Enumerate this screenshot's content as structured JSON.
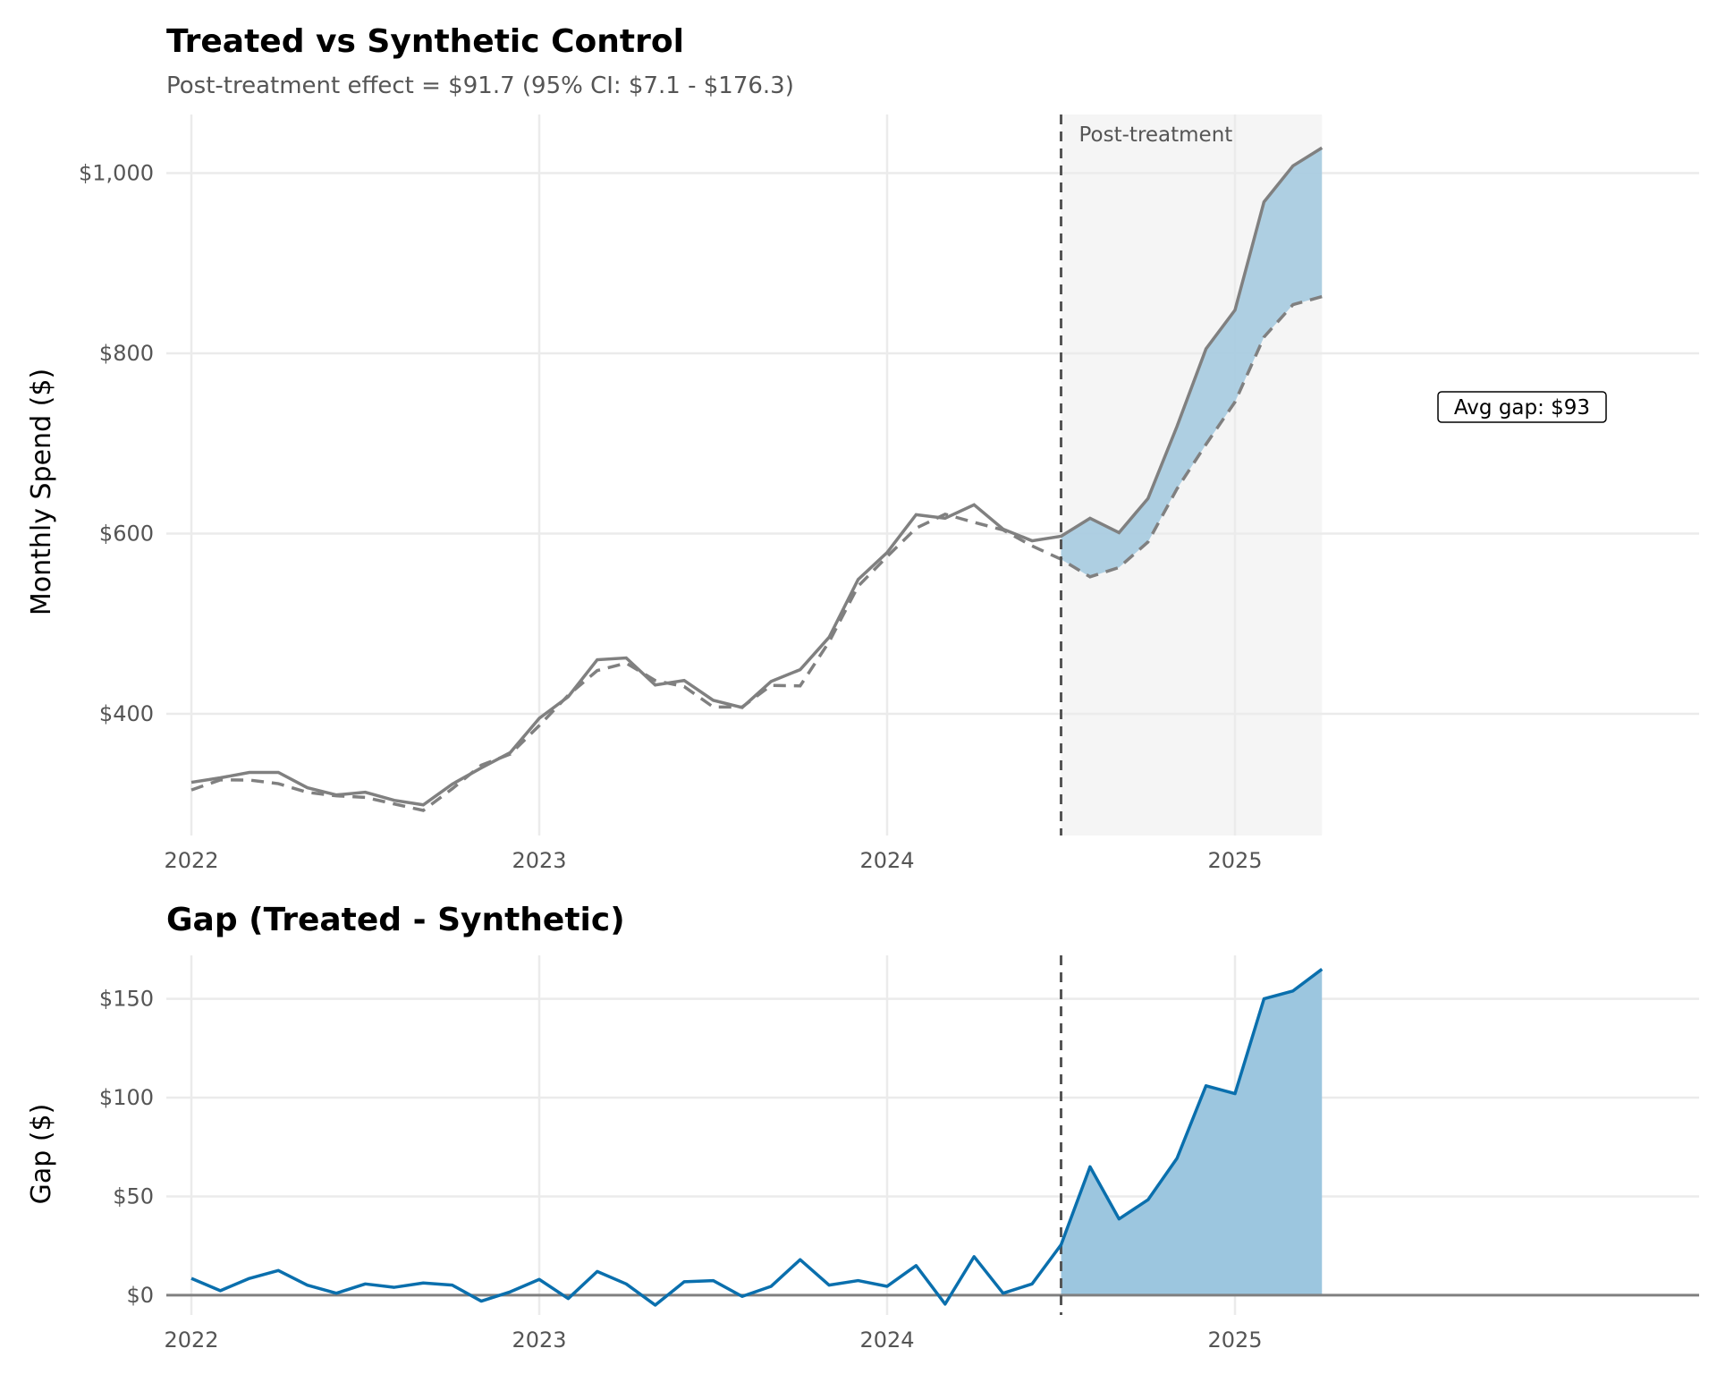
{
  "chart_data": [
    {
      "type": "line",
      "title": "Treated vs Synthetic Control",
      "subtitle": "Post-treatment effect = $91.7 (95% CI: $7.1 - $176.3)",
      "xlabel": "",
      "ylabel": "Monthly Spend ($)",
      "x_start": "2022-01",
      "x_frequency": "monthly",
      "x_ticks": [
        "2022",
        "2023",
        "2024",
        "2025"
      ],
      "y_ticks": [
        "$400",
        "$600",
        "$800",
        "$1,000"
      ],
      "y_tick_values": [
        400,
        600,
        800,
        1000
      ],
      "ylim": [
        265,
        1065
      ],
      "grid": true,
      "treatment_index": 30,
      "post_treatment_label": "Post-treatment",
      "gap_label": "Avg gap: $93",
      "colors": {
        "lines": "#808080",
        "fill": "#a6cbe0",
        "shade": "#f5f5f5",
        "vline": "#555555"
      },
      "series": [
        {
          "name": "Treated",
          "style": "solid",
          "values": [
            324,
            329,
            335,
            335,
            318,
            310,
            313,
            304,
            299,
            322,
            340,
            357,
            395,
            419,
            460,
            462,
            432,
            437,
            415,
            407,
            436,
            449,
            485,
            549,
            579,
            621,
            617,
            632,
            605,
            592,
            597,
            617,
            601,
            639,
            719,
            805,
            848,
            968,
            1008,
            1028
          ]
        },
        {
          "name": "Synthetic",
          "style": "dashed",
          "values": [
            315.5,
            326.7,
            326.5,
            322.5,
            312.9,
            309,
            307.3,
            300,
            292.8,
            316.9,
            343,
            355.3,
            387,
            420.7,
            448,
            456.3,
            437,
            430.2,
            407.6,
            407.6,
            431.5,
            431,
            479.9,
            541.6,
            574.5,
            606,
            621.5,
            612.5,
            604,
            586.3,
            571.5,
            552,
            562.4,
            590.7,
            649.7,
            699,
            746,
            818,
            854,
            863
          ]
        }
      ]
    },
    {
      "type": "area",
      "title": "Gap (Treated - Synthetic)",
      "xlabel": "",
      "ylabel": "Gap ($)",
      "x_start": "2022-01",
      "x_frequency": "monthly",
      "x_ticks": [
        "2022",
        "2023",
        "2024",
        "2025"
      ],
      "y_ticks": [
        "$0",
        "$50",
        "$100",
        "$150"
      ],
      "y_tick_values": [
        0,
        50,
        100,
        150
      ],
      "ylim": [
        -10,
        172
      ],
      "grid": true,
      "treatment_index": 30,
      "colors": {
        "line": "#0a6fad",
        "fill": "#9cc6df",
        "zero": "#808080",
        "vline": "#555555"
      },
      "series": [
        {
          "name": "Gap",
          "values": [
            8.5,
            2.3,
            8.5,
            12.5,
            5.1,
            1,
            5.7,
            4,
            6.2,
            5.1,
            -3,
            1.7,
            8,
            -1.7,
            12,
            5.7,
            -5,
            6.8,
            7.4,
            -0.6,
            4.5,
            18,
            5.1,
            7.4,
            4.5,
            15,
            -4.5,
            19.5,
            1,
            5.7,
            25.5,
            65,
            38.6,
            48.3,
            69.3,
            106,
            102,
            150,
            154,
            165
          ]
        }
      ]
    }
  ]
}
